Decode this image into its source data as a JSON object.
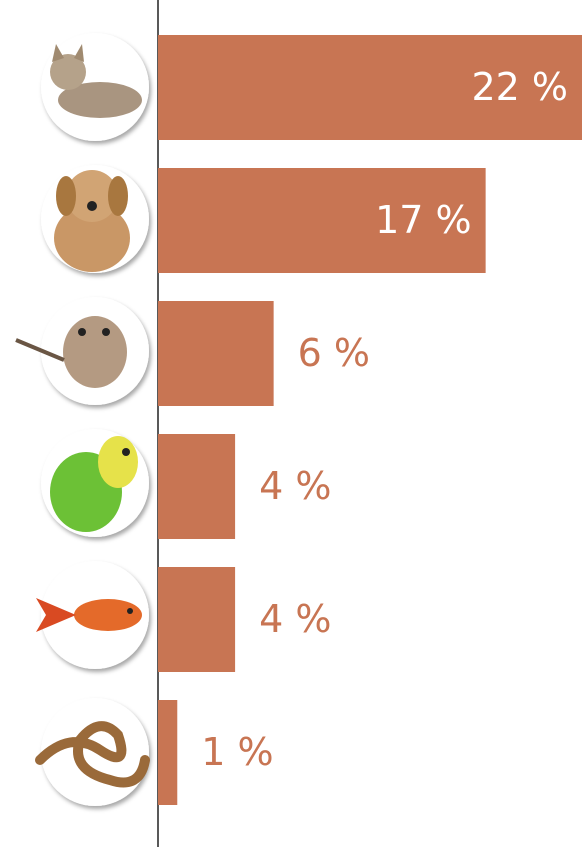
{
  "chart_data": {
    "type": "bar",
    "orientation": "horizontal",
    "categories": [
      null,
      null,
      null,
      null,
      null,
      null
    ],
    "values": [
      22,
      17,
      6,
      4,
      4,
      1
    ],
    "value_labels": [
      "22 %",
      "17 %",
      "6 %",
      "4 %",
      "4 %",
      "1 %"
    ],
    "color": "#c87553",
    "xlim": [
      0,
      22
    ]
  }
}
